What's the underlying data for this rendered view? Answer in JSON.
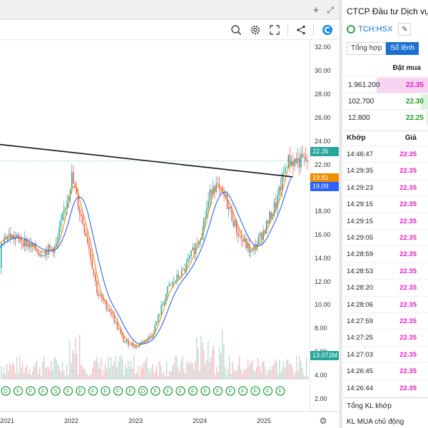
{
  "toolbar": {
    "icons": [
      "zoom-icon",
      "settings-icon",
      "fullscreen-icon",
      "share-icon",
      "logo-icon"
    ],
    "strip_icons": [
      "plus-icon",
      "expand-icon"
    ]
  },
  "chart_data": {
    "type": "candlestick",
    "yaxis": {
      "ticks": [
        "32.00",
        "30.00",
        "28.00",
        "26.00",
        "24.00",
        "22.00",
        "20.00",
        "18.00",
        "16.00",
        "14.00",
        "12.00",
        "10.00",
        "8.00",
        "6.00",
        "4.00",
        "2.00"
      ],
      "ylim": [
        1.0,
        32.7
      ]
    },
    "xaxis": {
      "ticks": [
        "2021",
        "2022",
        "2023",
        "2024",
        "2025"
      ]
    },
    "price_labels": [
      {
        "value": "22.35",
        "color": "#26a69a"
      },
      {
        "value": "19.81",
        "color": "#f08c00"
      },
      {
        "value": "19.09",
        "color": "#2962ff"
      },
      {
        "value": "13.072M",
        "color": "#26a69a"
      }
    ],
    "close_series_by_year": [
      {
        "year": 2020.5,
        "close": 13.2
      },
      {
        "year": 2020.75,
        "close": 15.0
      },
      {
        "year": 2021.0,
        "close": 16.0
      },
      {
        "year": 2021.25,
        "close": 15.5
      },
      {
        "year": 2021.5,
        "close": 14.5
      },
      {
        "year": 2021.75,
        "close": 15.0
      },
      {
        "year": 2022.0,
        "close": 21.0
      },
      {
        "year": 2022.1,
        "close": 18.5
      },
      {
        "year": 2022.25,
        "close": 15.5
      },
      {
        "year": 2022.4,
        "close": 11.0
      },
      {
        "year": 2022.6,
        "close": 9.5
      },
      {
        "year": 2022.8,
        "close": 7.0
      },
      {
        "year": 2023.0,
        "close": 6.5
      },
      {
        "year": 2023.25,
        "close": 7.5
      },
      {
        "year": 2023.5,
        "close": 11.5
      },
      {
        "year": 2023.75,
        "close": 13.0
      },
      {
        "year": 2024.0,
        "close": 16.0
      },
      {
        "year": 2024.2,
        "close": 20.5
      },
      {
        "year": 2024.4,
        "close": 19.0
      },
      {
        "year": 2024.6,
        "close": 16.0
      },
      {
        "year": 2024.8,
        "close": 14.5
      },
      {
        "year": 2025.0,
        "close": 16.5
      },
      {
        "year": 2025.2,
        "close": 19.0
      },
      {
        "year": 2025.35,
        "close": 22.35
      }
    ],
    "event_markers": [
      "D",
      "F",
      "F",
      "F",
      "S",
      "F",
      "F",
      "F",
      "F",
      "F",
      "F",
      "D",
      "F",
      "F",
      "F",
      "F",
      "F",
      "F",
      "F",
      "F",
      "F",
      "F",
      "F"
    ],
    "trendline": {
      "from": {
        "year": 2020.5,
        "value": 24.0
      },
      "to": {
        "year": 2025.45,
        "value": 21.0
      }
    },
    "reference_line": {
      "value": 22.35,
      "style": "dotted"
    }
  },
  "side": {
    "company_name": "CTCP Đầu tư Dịch vụ",
    "ticker": "TCH:HSX",
    "tabs": [
      {
        "label": "Tổng hợp",
        "active": false
      },
      {
        "label": "Sổ lệnh",
        "active": true
      }
    ],
    "bid_title": "Đặt mua",
    "bids": [
      {
        "volume": "1.961.200",
        "price": "22.35",
        "price_color": "#e91ec7",
        "bar_color": "#f6d4f2",
        "bar_fraction": 0.6
      },
      {
        "volume": "102.700",
        "price": "22.30",
        "price_color": "#1f9d1f",
        "bar_color": "#ddf2dd",
        "bar_fraction": 0.08
      },
      {
        "volume": "12.800",
        "price": "22.25",
        "price_color": "#1f9d1f",
        "bar_color": "#ddf2dd",
        "bar_fraction": 0.02
      }
    ],
    "trades_header": {
      "time": "Khớp",
      "price": "Giá"
    },
    "trades": [
      {
        "time": "14:46:47",
        "price": "22.35"
      },
      {
        "time": "14:29:35",
        "price": "22.35"
      },
      {
        "time": "14:29:23",
        "price": "22.35"
      },
      {
        "time": "14:29:15",
        "price": "22.35"
      },
      {
        "time": "14:29:15",
        "price": "22.35"
      },
      {
        "time": "14:29:05",
        "price": "22.35"
      },
      {
        "time": "14:28:59",
        "price": "22.35"
      },
      {
        "time": "14:28:53",
        "price": "22.35"
      },
      {
        "time": "14:28:20",
        "price": "22.35"
      },
      {
        "time": "14:28:06",
        "price": "22.35"
      },
      {
        "time": "14:27:59",
        "price": "22.35"
      },
      {
        "time": "14:27:25",
        "price": "22.35"
      },
      {
        "time": "14:27:03",
        "price": "22.35"
      },
      {
        "time": "14:26:45",
        "price": "22.35"
      },
      {
        "time": "14:26:44",
        "price": "22.35"
      }
    ],
    "summary": [
      "Tổng KL khớp",
      "KL MUA chủ động"
    ]
  }
}
